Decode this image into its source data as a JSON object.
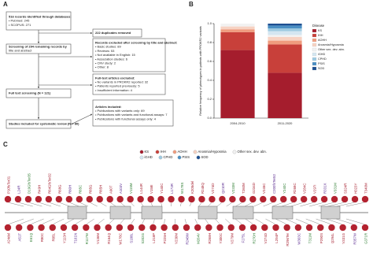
{
  "panel_labels": [
    "A",
    "B",
    "C"
  ],
  "panel_a": {
    "boxes": [
      {
        "lines": [
          "516 records identified through databases:",
          "•  Pubmed: 245",
          "•  SCOPUS: 271"
        ]
      },
      {
        "lines": [
          "222 duplicates removed"
        ]
      },
      {
        "lines": [
          "Screening of 294 remaining records by",
          "title and abstract"
        ]
      },
      {
        "lines": [
          "Records excluded after screening by title and abstract:",
          "•  Basic studies: 89",
          "•  Reviews: 53",
          "•  Not available in English: 15",
          "•  Association studies: 6",
          "•  CNV study: 2",
          "•  Other: 8"
        ]
      },
      {
        "lines": [
          "Full text screening (N = 121)"
        ]
      },
      {
        "lines": [
          "Full-text articles excluded:",
          "•  No variants in PROKR2 reported: 32",
          "•  Patients reported previously: 5",
          "•  Insufficient information: 4"
        ]
      },
      {
        "lines": [
          "Studies included for systematic review (N = 80)"
        ]
      },
      {
        "lines": [
          "Articles included:",
          "•  Publications with variants only: 69",
          "•  Publications with variants and functional assays: 7",
          "•  Publications with functional assays only: 4"
        ]
      }
    ]
  },
  "chart_data": {
    "type": "stacked-bar",
    "y_label": "Relative frequency of phenotypes in patients with PROKR2 variants",
    "categories": [
      "2004-2010",
      "2011-2020"
    ],
    "legend_title": "Disease",
    "series": [
      {
        "name": "KS",
        "color": "#a51d2d",
        "values": [
          0.72,
          0.48
        ]
      },
      {
        "name": "IHH",
        "color": "#c8403a",
        "values": [
          0.19,
          0.3
        ]
      },
      {
        "name": "AOHH",
        "color": "#ef9c7e",
        "values": [
          0.03,
          0.04
        ]
      },
      {
        "name": "Anosmia/Hyposmia",
        "color": "#f7d2c2",
        "values": [
          0.03,
          0.04
        ]
      },
      {
        "name": "Other sex. dev. abn.",
        "color": "#f2f2f2",
        "values": [
          0.03,
          0.02
        ]
      },
      {
        "name": "iGHD",
        "color": "#d4e6f1",
        "values": [
          0,
          0.04
        ]
      },
      {
        "name": "CPHD",
        "color": "#9ecae1",
        "values": [
          0,
          0.03
        ]
      },
      {
        "name": "PSIS",
        "color": "#4a8fc4",
        "values": [
          0,
          0.03
        ]
      },
      {
        "name": "SOD",
        "color": "#1d4f91",
        "values": [
          0,
          0.02
        ]
      }
    ],
    "ylim": [
      0,
      1
    ],
    "yticks": [
      {
        "value": 0,
        "label": "0.0"
      },
      {
        "value": 0.2,
        "label": "0.2"
      },
      {
        "value": 0.4,
        "label": "0.4"
      },
      {
        "value": 0.6,
        "label": "0.6"
      },
      {
        "value": 0.8,
        "label": "0.8"
      },
      {
        "value": 1,
        "label": "1.0"
      }
    ]
  },
  "panel_c": {
    "variants_top": [
      "P10fsTer31",
      "L24R",
      "D19GfsTer35",
      "R49H",
      "R64GfsTer32",
      "R68G",
      "R80H",
      "R85C",
      "R85G",
      "R85H",
      "A90T",
      "A103V",
      "V115M",
      "L144R",
      "V158I",
      "Y140C",
      "L173R",
      "W178S",
      "K205del",
      "R248Q",
      "V274D",
      "Q210R",
      "V233M",
      "T260M",
      "G234D",
      "V245C",
      "C200fsTer52",
      "Y240C",
      "R268C",
      "V284C",
      "V297I",
      "R331X",
      "V331M",
      "S324R",
      "H323Y",
      "T340M"
    ],
    "variants_bottom": [
      "A24del",
      "A51T",
      "E61Q",
      "R80C",
      "R85L",
      "Y113H",
      "T101N",
      "R117W",
      "V136M",
      "R164Q",
      "W178C",
      "S188L",
      "S202G",
      "L218P",
      "P225H",
      "V230M",
      "R248W",
      "M264V",
      "R268H",
      "Y300C",
      "V279M",
      "F275L",
      "R270H",
      "V274D",
      "L294P",
      "R296Ter",
      "W303C",
      "T311M",
      "P290S",
      "Q294L",
      "V331G",
      "R357W",
      "G371R"
    ]
  }
}
